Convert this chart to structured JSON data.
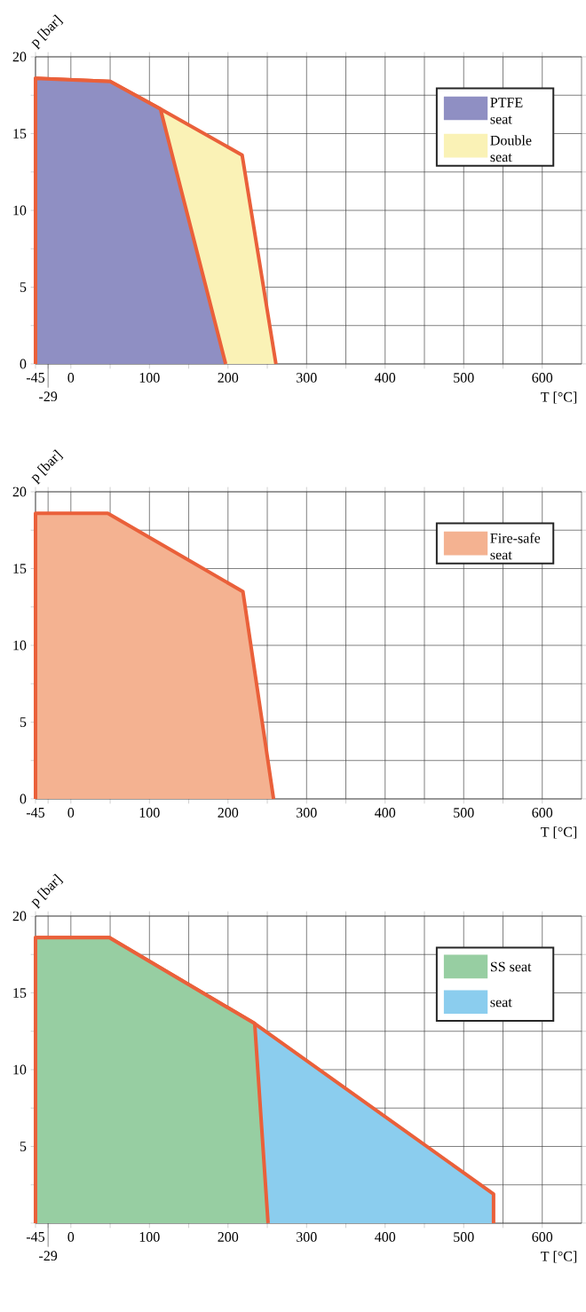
{
  "chart_data": [
    {
      "type": "area",
      "xlabel": "T [°C]",
      "ylabel": "p [bar]",
      "xlim": [
        -45,
        650
      ],
      "ylim": [
        0,
        20
      ],
      "annotations": [
        "-29"
      ],
      "xticks": [
        -45,
        {
          "value": -29,
          "label": null
        },
        0,
        {
          "value": 50,
          "label": null
        },
        100,
        {
          "value": 150,
          "label": null
        },
        200,
        {
          "value": 250,
          "label": null
        },
        300,
        {
          "value": 350,
          "label": null
        },
        400,
        {
          "value": 450,
          "label": null
        },
        500,
        {
          "value": 550,
          "label": null
        },
        600
      ],
      "yticks": [
        0,
        {
          "value": 2.5,
          "label": null
        },
        5,
        {
          "value": 7.5,
          "label": null
        },
        10,
        {
          "value": 12.5,
          "label": null
        },
        15,
        {
          "value": 17.5,
          "label": null
        },
        20
      ],
      "grid": true,
      "legend": "top right",
      "series": [
        {
          "name": "PTFE seat",
          "color": "#8f8fc3",
          "x": [
            -45,
            50,
            114,
            197
          ],
          "values": [
            18.6,
            18.4,
            16.6,
            0
          ]
        },
        {
          "name": "Double seat",
          "color": "#faf2b6",
          "x": [
            -45,
            50,
            114,
            218,
            261
          ],
          "values": [
            18.6,
            18.4,
            16.6,
            13.6,
            0
          ]
        }
      ]
    },
    {
      "type": "area",
      "xlabel": "T [°C]",
      "ylabel": "p [bar]",
      "xlim": [
        -45,
        650
      ],
      "ylim": [
        0,
        20
      ],
      "xticks": [
        -45,
        {
          "value": -29,
          "label": null
        },
        0,
        {
          "value": 50,
          "label": null
        },
        100,
        {
          "value": 150,
          "label": null
        },
        200,
        {
          "value": 250,
          "label": null
        },
        300,
        {
          "value": 350,
          "label": null
        },
        400,
        {
          "value": 450,
          "label": null
        },
        500,
        {
          "value": 550,
          "label": null
        },
        600
      ],
      "yticks": [
        0,
        {
          "value": 2.5,
          "label": null
        },
        5,
        {
          "value": 7.5,
          "label": null
        },
        10,
        {
          "value": 12.5,
          "label": null
        },
        15,
        {
          "value": 17.5,
          "label": null
        },
        20
      ],
      "grid": true,
      "legend": "top right",
      "series": [
        {
          "name": "Fire-safe seat",
          "color": "#f4b291",
          "x": [
            -45,
            47,
            219,
            258
          ],
          "values": [
            18.6,
            18.6,
            13.5,
            0
          ]
        }
      ]
    },
    {
      "type": "area",
      "xlabel": "T [°C]",
      "ylabel": "p [bar]",
      "xlim": [
        -45,
        650
      ],
      "ylim": [
        0,
        20
      ],
      "annotations": [
        "-29"
      ],
      "xticks": [
        -45,
        {
          "value": -29,
          "label": null
        },
        0,
        {
          "value": 50,
          "label": null
        },
        100,
        {
          "value": 150,
          "label": null
        },
        200,
        {
          "value": 250,
          "label": null
        },
        300,
        {
          "value": 350,
          "label": null
        },
        400,
        {
          "value": 450,
          "label": null
        },
        500,
        {
          "value": 550,
          "label": null
        },
        600
      ],
      "yticks": [
        {
          "value": 0,
          "label": null
        },
        {
          "value": 2.5,
          "label": null
        },
        5,
        {
          "value": 7.5,
          "label": null
        },
        10,
        {
          "value": 12.5,
          "label": null
        },
        15,
        {
          "value": 17.5,
          "label": null
        },
        20
      ],
      "grid": true,
      "legend": "top right",
      "series": [
        {
          "name": "SS seat",
          "color": "#97cea2",
          "x": [
            -45,
            49,
            234,
            251
          ],
          "values": [
            18.6,
            18.6,
            13.0,
            0
          ]
        },
        {
          "name": "seat",
          "color": "#8bcdee",
          "x": [
            -45,
            49,
            234,
            538
          ],
          "values": [
            18.6,
            18.6,
            13.0,
            1.9
          ]
        }
      ]
    }
  ]
}
